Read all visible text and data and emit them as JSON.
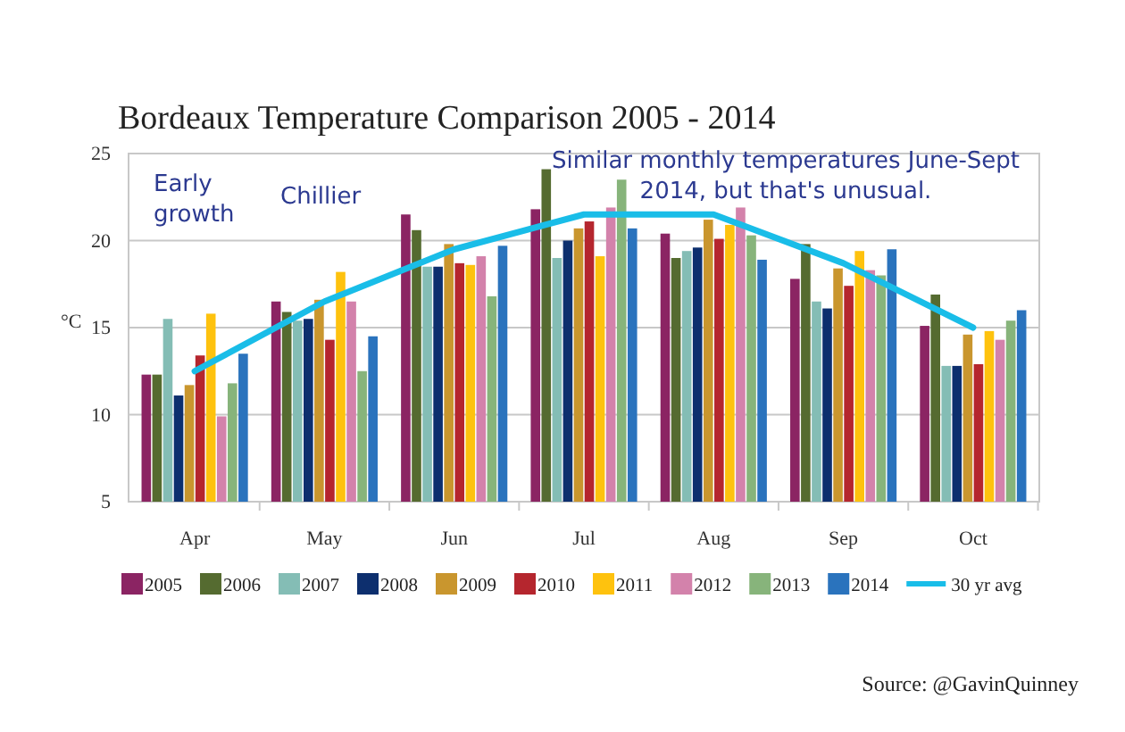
{
  "chart_data": {
    "type": "bar",
    "title": "Bordeaux Temperature Comparison 2005 - 2014",
    "ylabel": "°C",
    "categories": [
      "Apr",
      "May",
      "Jun",
      "Jul",
      "Aug",
      "Sep",
      "Oct"
    ],
    "ylim": [
      5,
      25
    ],
    "yticks": [
      5,
      10,
      15,
      20,
      25
    ],
    "grid": "y",
    "legend": "bottom",
    "series": [
      {
        "name": "2005",
        "color": "#8b2463",
        "values": [
          12.3,
          16.5,
          21.5,
          21.8,
          20.4,
          17.8,
          15.1
        ]
      },
      {
        "name": "2006",
        "color": "#556b30",
        "values": [
          12.3,
          15.9,
          20.6,
          24.1,
          19.0,
          19.8,
          16.9
        ]
      },
      {
        "name": "2007",
        "color": "#84bdb5",
        "values": [
          15.5,
          15.4,
          18.5,
          19.0,
          19.4,
          16.5,
          12.8
        ]
      },
      {
        "name": "2008",
        "color": "#0d2f6e",
        "values": [
          11.1,
          15.5,
          18.5,
          20.0,
          19.6,
          16.1,
          12.8
        ]
      },
      {
        "name": "2009",
        "color": "#c9962e",
        "values": [
          11.7,
          16.6,
          19.8,
          20.7,
          21.2,
          18.4,
          14.6
        ]
      },
      {
        "name": "2010",
        "color": "#b5262e",
        "values": [
          13.4,
          14.3,
          18.7,
          21.1,
          20.1,
          17.4,
          12.9
        ]
      },
      {
        "name": "2011",
        "color": "#fec20e",
        "values": [
          15.8,
          18.2,
          18.6,
          19.1,
          20.9,
          19.4,
          14.8
        ]
      },
      {
        "name": "2012",
        "color": "#d382ab",
        "values": [
          9.9,
          16.5,
          19.1,
          21.9,
          21.9,
          18.3,
          14.3
        ]
      },
      {
        "name": "2013",
        "color": "#87b47b",
        "values": [
          11.8,
          12.5,
          16.8,
          23.5,
          20.3,
          18.0,
          15.4
        ]
      },
      {
        "name": "2014",
        "color": "#2a73bd",
        "values": [
          13.5,
          14.5,
          19.7,
          20.7,
          18.9,
          19.5,
          16.0
        ]
      },
      {
        "name": "30 yr avg",
        "type": "line",
        "color": "#19bde8",
        "values": [
          12.5,
          16.5,
          19.5,
          21.5,
          21.5,
          18.7,
          15.0
        ]
      }
    ],
    "annotations": [
      "Early growth",
      "Chillier",
      "Similar monthly temperatures June-Sept 2014, but that's unusual.",
      "Source: @GavinQuinney"
    ]
  }
}
